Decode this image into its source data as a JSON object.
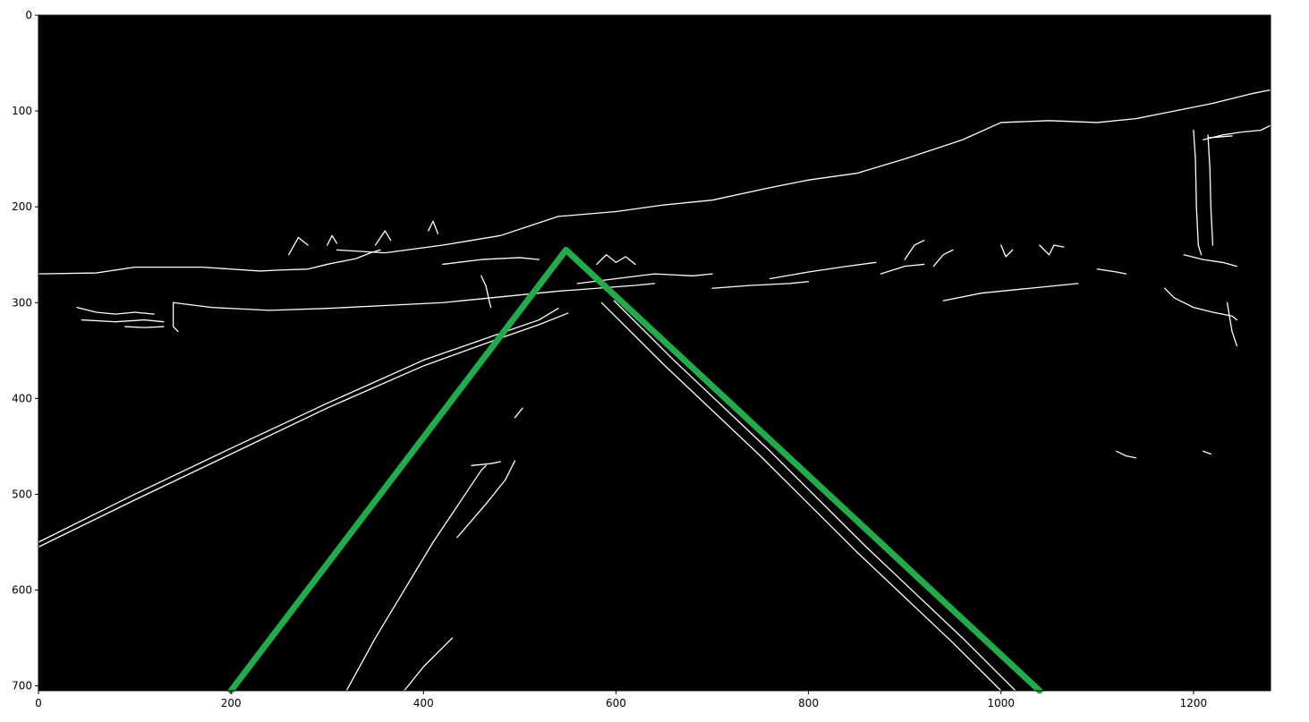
{
  "figure": {
    "image_description_free": true,
    "background": "#000000",
    "edge_color": "#ffffff",
    "roi_color": "#22ab4b"
  },
  "chart_data": {
    "type": "image",
    "xlim": [
      0,
      1280
    ],
    "ylim": [
      705,
      0
    ],
    "x_ticks": [
      0,
      200,
      400,
      600,
      800,
      1000,
      1200
    ],
    "y_ticks": [
      0,
      100,
      200,
      300,
      400,
      500,
      600,
      700
    ],
    "x_tick_labels": [
      "0",
      "200",
      "400",
      "600",
      "800",
      "1000",
      "1200"
    ],
    "y_tick_labels": [
      "0",
      "100",
      "200",
      "300",
      "400",
      "500",
      "600",
      "700"
    ],
    "roi_polyline": [
      [
        200,
        705
      ],
      [
        548,
        245
      ],
      [
        1040,
        705
      ]
    ],
    "edges": [
      [
        [
          0,
          270
        ],
        [
          60,
          269
        ],
        [
          100,
          263
        ],
        [
          170,
          263
        ],
        [
          230,
          267
        ],
        [
          250,
          266
        ],
        [
          280,
          265
        ],
        [
          300,
          260
        ],
        [
          310,
          258
        ],
        [
          330,
          254
        ],
        [
          345,
          248
        ],
        [
          355,
          245
        ]
      ],
      [
        [
          0,
          550
        ],
        [
          100,
          500
        ],
        [
          200,
          452
        ],
        [
          300,
          405
        ],
        [
          400,
          360
        ],
        [
          480,
          332
        ],
        [
          520,
          318
        ],
        [
          540,
          306
        ]
      ],
      [
        [
          0,
          555
        ],
        [
          100,
          506
        ],
        [
          200,
          458
        ],
        [
          300,
          410
        ],
        [
          400,
          366
        ],
        [
          480,
          337
        ],
        [
          520,
          323
        ],
        [
          550,
          311
        ]
      ],
      [
        [
          585,
          300
        ],
        [
          650,
          365
        ],
        [
          750,
          460
        ],
        [
          850,
          560
        ],
        [
          950,
          655
        ],
        [
          1000,
          705
        ]
      ],
      [
        [
          598,
          298
        ],
        [
          660,
          360
        ],
        [
          760,
          455
        ],
        [
          860,
          555
        ],
        [
          960,
          650
        ],
        [
          1015,
          705
        ]
      ],
      [
        [
          320,
          705
        ],
        [
          350,
          650
        ],
        [
          380,
          600
        ],
        [
          410,
          550
        ],
        [
          440,
          505
        ],
        [
          460,
          475
        ],
        [
          465,
          470
        ]
      ],
      [
        [
          435,
          545
        ],
        [
          465,
          510
        ],
        [
          485,
          485
        ],
        [
          495,
          465
        ]
      ],
      [
        [
          380,
          705
        ],
        [
          400,
          680
        ],
        [
          420,
          660
        ],
        [
          430,
          650
        ]
      ],
      [
        [
          495,
          420
        ],
        [
          503,
          410
        ]
      ],
      [
        [
          310,
          245
        ],
        [
          360,
          248
        ],
        [
          420,
          240
        ],
        [
          480,
          230
        ],
        [
          540,
          210
        ],
        [
          600,
          205
        ],
        [
          650,
          198
        ],
        [
          700,
          193
        ],
        [
          760,
          180
        ],
        [
          800,
          172
        ],
        [
          850,
          165
        ],
        [
          900,
          150
        ],
        [
          960,
          130
        ],
        [
          1000,
          112
        ],
        [
          1050,
          110
        ],
        [
          1100,
          112
        ],
        [
          1140,
          108
        ],
        [
          1180,
          100
        ],
        [
          1220,
          92
        ],
        [
          1260,
          82
        ],
        [
          1280,
          78
        ]
      ],
      [
        [
          1280,
          115
        ],
        [
          1270,
          120
        ],
        [
          1250,
          122
        ],
        [
          1230,
          125
        ],
        [
          1210,
          130
        ]
      ],
      [
        [
          1200,
          120
        ],
        [
          1202,
          150
        ],
        [
          1203,
          200
        ],
        [
          1205,
          240
        ],
        [
          1208,
          250
        ]
      ],
      [
        [
          1215,
          125
        ],
        [
          1217,
          160
        ],
        [
          1218,
          200
        ],
        [
          1220,
          240
        ]
      ],
      [
        [
          1215,
          128
        ],
        [
          1240,
          126
        ]
      ],
      [
        [
          140,
          300
        ],
        [
          180,
          305
        ],
        [
          240,
          308
        ],
        [
          300,
          306
        ],
        [
          360,
          303
        ],
        [
          420,
          300
        ],
        [
          470,
          295
        ],
        [
          500,
          292
        ],
        [
          540,
          288
        ],
        [
          580,
          285
        ],
        [
          620,
          282
        ],
        [
          640,
          280
        ]
      ],
      [
        [
          140,
          300
        ],
        [
          140,
          325
        ],
        [
          145,
          330
        ]
      ],
      [
        [
          40,
          305
        ],
        [
          60,
          310
        ],
        [
          80,
          312
        ],
        [
          100,
          310
        ],
        [
          120,
          312
        ]
      ],
      [
        [
          45,
          318
        ],
        [
          80,
          320
        ],
        [
          110,
          318
        ],
        [
          130,
          320
        ]
      ],
      [
        [
          90,
          325
        ],
        [
          110,
          326
        ],
        [
          130,
          325
        ]
      ],
      [
        [
          420,
          260
        ],
        [
          460,
          255
        ],
        [
          500,
          253
        ],
        [
          520,
          255
        ]
      ],
      [
        [
          460,
          272
        ],
        [
          465,
          283
        ],
        [
          468,
          297
        ],
        [
          470,
          305
        ]
      ],
      [
        [
          560,
          280
        ],
        [
          600,
          275
        ],
        [
          640,
          270
        ],
        [
          680,
          272
        ],
        [
          700,
          270
        ]
      ],
      [
        [
          700,
          285
        ],
        [
          740,
          282
        ],
        [
          780,
          280
        ],
        [
          800,
          278
        ]
      ],
      [
        [
          760,
          275
        ],
        [
          800,
          268
        ],
        [
          840,
          262
        ],
        [
          870,
          258
        ]
      ],
      [
        [
          875,
          270
        ],
        [
          900,
          262
        ],
        [
          920,
          260
        ]
      ],
      [
        [
          940,
          298
        ],
        [
          980,
          290
        ],
        [
          1030,
          285
        ],
        [
          1060,
          282
        ],
        [
          1080,
          280
        ]
      ],
      [
        [
          1100,
          265
        ],
        [
          1120,
          268
        ],
        [
          1130,
          270
        ]
      ],
      [
        [
          1190,
          250
        ],
        [
          1210,
          255
        ],
        [
          1230,
          258
        ],
        [
          1245,
          262
        ]
      ],
      [
        [
          1170,
          285
        ],
        [
          1180,
          295
        ],
        [
          1200,
          305
        ],
        [
          1220,
          310
        ],
        [
          1240,
          314
        ],
        [
          1245,
          318
        ]
      ],
      [
        [
          1235,
          300
        ],
        [
          1240,
          330
        ],
        [
          1245,
          345
        ]
      ],
      [
        [
          1120,
          455
        ],
        [
          1130,
          460
        ],
        [
          1140,
          462
        ]
      ],
      [
        [
          1210,
          455
        ],
        [
          1218,
          458
        ]
      ],
      [
        [
          450,
          470
        ],
        [
          470,
          468
        ],
        [
          480,
          466
        ]
      ],
      [
        [
          900,
          255
        ],
        [
          910,
          240
        ],
        [
          920,
          235
        ]
      ],
      [
        [
          930,
          262
        ],
        [
          940,
          250
        ],
        [
          950,
          245
        ]
      ],
      [
        [
          260,
          250
        ],
        [
          270,
          232
        ],
        [
          280,
          240
        ]
      ],
      [
        [
          300,
          240
        ],
        [
          305,
          230
        ],
        [
          310,
          238
        ]
      ],
      [
        [
          350,
          240
        ],
        [
          360,
          225
        ],
        [
          366,
          235
        ]
      ],
      [
        [
          405,
          225
        ],
        [
          410,
          215
        ],
        [
          415,
          228
        ]
      ],
      [
        [
          580,
          260
        ],
        [
          590,
          250
        ],
        [
          600,
          258
        ],
        [
          610,
          252
        ],
        [
          620,
          260
        ]
      ],
      [
        [
          1000,
          240
        ],
        [
          1005,
          252
        ],
        [
          1012,
          245
        ]
      ],
      [
        [
          1040,
          240
        ],
        [
          1050,
          250
        ],
        [
          1055,
          240
        ],
        [
          1065,
          242
        ]
      ]
    ]
  }
}
